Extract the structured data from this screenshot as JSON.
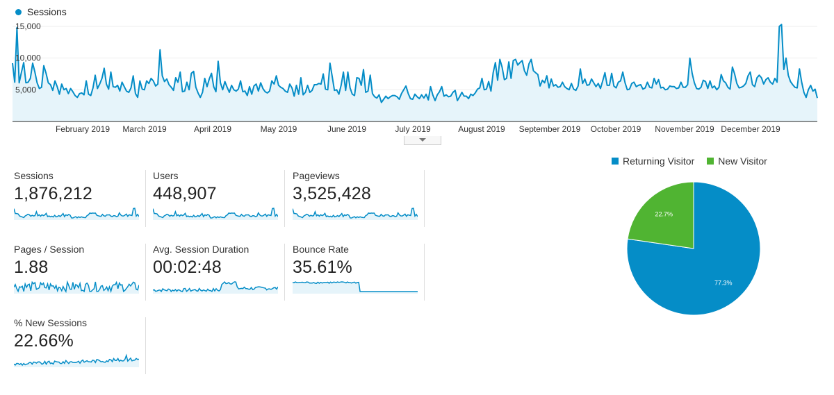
{
  "chart_data": {
    "type": "area",
    "legend": [
      "Sessions"
    ],
    "series": [
      {
        "name": "Sessions",
        "color": "#058dc7",
        "fill": "#e6f4fa",
        "values": [
          9200,
          6200,
          14800,
          6100,
          7800,
          9300,
          6100,
          6200,
          6800,
          9200,
          7800,
          6100,
          5200,
          5400,
          8800,
          7600,
          6100,
          5800,
          4900,
          6400,
          5500,
          4300,
          5900,
          5000,
          5200,
          4400,
          5200,
          4700,
          4100,
          3800,
          4400,
          4500,
          4200,
          6400,
          4300,
          4100,
          5300,
          7300,
          5200,
          5900,
          6800,
          8400,
          5900,
          5100,
          7800,
          5500,
          5400,
          5700,
          4800,
          6200,
          5500,
          4800,
          4600,
          5300,
          7200,
          4400,
          3800,
          6400,
          5100,
          5000,
          6400,
          6000,
          6800,
          6400,
          5600,
          5900,
          11300,
          7200,
          6300,
          6700,
          5800,
          5400,
          4900,
          6900,
          6200,
          7800,
          4700,
          4800,
          6200,
          5000,
          7600,
          7900,
          5400,
          4500,
          3800,
          4600,
          6800,
          5500,
          6700,
          7600,
          5500,
          4700,
          9500,
          6100,
          5000,
          6300,
          5400,
          4600,
          5700,
          5000,
          4800,
          5100,
          6400,
          4700,
          4800,
          4100,
          5500,
          4300,
          5600,
          5900,
          4800,
          6100,
          5200,
          4700,
          4500,
          4800,
          6400,
          5900,
          7200,
          5700,
          5400,
          5200,
          4800,
          4600,
          5900,
          5300,
          4000,
          5700,
          4300,
          6900,
          4200,
          4600,
          5700,
          4600,
          4900,
          5800,
          5800,
          6000,
          5900,
          7500,
          5100,
          5000,
          9200,
          7100,
          4900,
          5000,
          4300,
          5700,
          7800,
          4900,
          7800,
          5300,
          4300,
          4100,
          6900,
          6800,
          5700,
          8200,
          4600,
          4800,
          7300,
          4400,
          3900,
          3700,
          4200,
          3000,
          3500,
          4000,
          3600,
          3900,
          4100,
          4100,
          3900,
          3500,
          4400,
          5000,
          5600,
          4400,
          3600,
          3500,
          4300,
          3900,
          3600,
          4200,
          3700,
          4300,
          3400,
          5500,
          4200,
          3300,
          4200,
          4700,
          5500,
          4000,
          4200,
          3900,
          4000,
          4600,
          4900,
          3300,
          3900,
          4600,
          4000,
          4000,
          3600,
          4300,
          4100,
          4500,
          5100,
          5300,
          6800,
          5000,
          5100,
          6300,
          4800,
          7700,
          9300,
          6500,
          9800,
          8600,
          6600,
          6800,
          9400,
          6800,
          9600,
          9800,
          8900,
          9300,
          9600,
          8000,
          7300,
          9100,
          9800,
          8000,
          7700,
          7400,
          5600,
          6500,
          6100,
          7200,
          5300,
          6700,
          5600,
          5800,
          5400,
          5500,
          6200,
          5500,
          5200,
          5000,
          6000,
          5100,
          4900,
          5600,
          8300,
          6000,
          6700,
          5700,
          5800,
          6700,
          6100,
          5500,
          6000,
          5200,
          6400,
          7700,
          5700,
          5700,
          7600,
          5600,
          5300,
          6200,
          6400,
          7800,
          6100,
          5000,
          5100,
          6000,
          6200,
          5500,
          5700,
          5800,
          5100,
          5300,
          6200,
          5400,
          5300,
          6800,
          5900,
          6600,
          5300,
          5400,
          5000,
          5100,
          5600,
          5500,
          5500,
          5200,
          5300,
          6200,
          5400,
          5400,
          5800,
          10000,
          7600,
          6100,
          5200,
          5100,
          5400,
          6500,
          6300,
          5200,
          6400,
          5300,
          5600,
          5000,
          5400,
          7400,
          6400,
          6100,
          5400,
          5100,
          8600,
          7500,
          6000,
          5300,
          5400,
          5600,
          6000,
          7200,
          7800,
          5800,
          5500,
          6900,
          7300,
          6900,
          5900,
          6600,
          6900,
          6200,
          5900,
          6800,
          6200,
          15000,
          15300,
          8200,
          10000,
          7300,
          6300,
          5800,
          5400,
          5300,
          8300,
          6200,
          4600,
          3800,
          5000,
          5700,
          4800,
          5100,
          3700
        ]
      }
    ],
    "x_labels": [
      "February 2019",
      "March 2019",
      "April 2019",
      "May 2019",
      "June 2019",
      "July 2019",
      "August 2019",
      "September 2019",
      "October 2019",
      "November 2019",
      "December 2019"
    ],
    "y_ticks": [
      "5,000",
      "10,000",
      "15,000"
    ],
    "ylim": [
      0,
      15000
    ],
    "grid": true,
    "legend_position": "top-left"
  },
  "metrics": [
    {
      "label": "Sessions",
      "value": "1,876,212"
    },
    {
      "label": "Users",
      "value": "448,907"
    },
    {
      "label": "Pageviews",
      "value": "3,525,428"
    },
    {
      "label": "Pages / Session",
      "value": "1.88"
    },
    {
      "label": "Avg. Session Duration",
      "value": "00:02:48"
    },
    {
      "label": "Bounce Rate",
      "value": "35.61%"
    },
    {
      "label": "% New Sessions",
      "value": "22.66%"
    }
  ],
  "pie": {
    "type": "pie",
    "slices": [
      {
        "name": "Returning Visitor",
        "value": 77.3,
        "label": "77.3%",
        "color": "#058dc7"
      },
      {
        "name": "New Visitor",
        "value": 22.7,
        "label": "22.7%",
        "color": "#50b432"
      }
    ]
  },
  "colors": {
    "line": "#058dc7",
    "area": "#e6f4fa",
    "grid": "#eeeeee",
    "divider": "#dddddd"
  }
}
